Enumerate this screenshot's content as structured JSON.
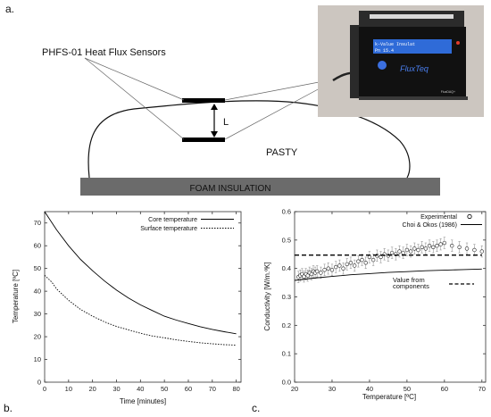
{
  "panel_labels": {
    "a": "a.",
    "b": "b.",
    "c": "c."
  },
  "diagram": {
    "sensors_label": "PHFS-01 Heat Flux Sensors",
    "distance_label": "L",
    "sample_label": "PASTY",
    "base_label": "FOAM INSULATION",
    "device": {
      "screen_line1": "k-Value Insulat",
      "screen_line2": "Pn 15.4",
      "brand": "FluxTeq",
      "brand_small": "FluxDAQ+",
      "colors": {
        "body": "#1a1a1a",
        "screen": "#2f6bd8",
        "accent": "#e03c2c",
        "background": "#c9c3bd"
      }
    }
  },
  "chart_data": [
    {
      "type": "line",
      "xlabel": "Time [minutes]",
      "ylabel": "Temperature [ºC]",
      "xlim": [
        0,
        82
      ],
      "ylim": [
        0,
        75
      ],
      "xticks": [
        0,
        10,
        20,
        30,
        40,
        50,
        60,
        70,
        80
      ],
      "yticks": [
        0,
        10,
        20,
        30,
        40,
        50,
        60,
        70
      ],
      "grid": false,
      "legend_position": "top-right",
      "series": [
        {
          "name": "Core temperature",
          "style": "solid",
          "x": [
            0,
            5,
            10,
            15,
            20,
            25,
            30,
            35,
            40,
            45,
            50,
            55,
            60,
            65,
            70,
            75,
            80
          ],
          "values": [
            75,
            67,
            60,
            54,
            49,
            44.5,
            40.5,
            37,
            34,
            31.5,
            29,
            27.3,
            25.8,
            24.4,
            23.2,
            22.2,
            21.3
          ]
        },
        {
          "name": "Surface temperature",
          "style": "dotted",
          "x": [
            0,
            3,
            5,
            10,
            15,
            20,
            25,
            30,
            35,
            40,
            45,
            50,
            55,
            60,
            65,
            70,
            75,
            80
          ],
          "values": [
            47,
            44,
            41,
            36,
            32,
            29,
            26.5,
            24.5,
            23,
            21.5,
            20.3,
            19.5,
            18.6,
            17.9,
            17.3,
            16.9,
            16.5,
            16.3
          ]
        }
      ]
    },
    {
      "type": "scatter",
      "xlabel": "Temperature [ºC]",
      "ylabel": "Conductivity [W/m.ºK]",
      "xlim": [
        20,
        71
      ],
      "ylim": [
        0,
        0.6
      ],
      "xticks": [
        20,
        30,
        40,
        50,
        60,
        70
      ],
      "yticks": [
        0,
        0.1,
        0.2,
        0.3,
        0.4,
        0.5,
        0.6
      ],
      "grid": false,
      "legend_position": "top-right",
      "series": [
        {
          "name": "Experimental",
          "style": "circles-with-errorbars",
          "x": [
            21,
            21.5,
            22,
            22.5,
            23,
            23.5,
            24,
            24.5,
            25,
            25.5,
            26,
            27,
            28,
            29,
            30,
            31,
            32,
            33,
            34,
            35,
            36,
            37,
            38,
            39,
            40,
            41,
            42,
            43,
            44,
            45,
            46,
            47,
            48,
            49,
            50,
            51,
            52,
            53,
            54,
            55,
            56,
            57,
            58,
            59,
            60,
            62,
            64,
            66,
            68,
            70
          ],
          "values": [
            0.37,
            0.375,
            0.38,
            0.372,
            0.38,
            0.375,
            0.385,
            0.38,
            0.39,
            0.385,
            0.39,
            0.385,
            0.395,
            0.4,
            0.395,
            0.405,
            0.41,
            0.4,
            0.415,
            0.42,
            0.41,
            0.425,
            0.43,
            0.42,
            0.44,
            0.43,
            0.445,
            0.44,
            0.45,
            0.445,
            0.455,
            0.45,
            0.46,
            0.455,
            0.465,
            0.46,
            0.47,
            0.465,
            0.475,
            0.47,
            0.48,
            0.475,
            0.48,
            0.485,
            0.49,
            0.48,
            0.475,
            0.47,
            0.465,
            0.46
          ],
          "error": 0.02
        },
        {
          "name": "Choi & Okos (1986)",
          "style": "solid",
          "x": [
            20,
            25,
            30,
            35,
            40,
            45,
            50,
            55,
            60,
            65,
            70
          ],
          "values": [
            0.358,
            0.366,
            0.372,
            0.378,
            0.382,
            0.386,
            0.389,
            0.392,
            0.394,
            0.396,
            0.398
          ]
        },
        {
          "name": "Value from components",
          "style": "dashed",
          "x": [
            20,
            70
          ],
          "values": [
            0.447,
            0.447
          ]
        }
      ]
    }
  ]
}
